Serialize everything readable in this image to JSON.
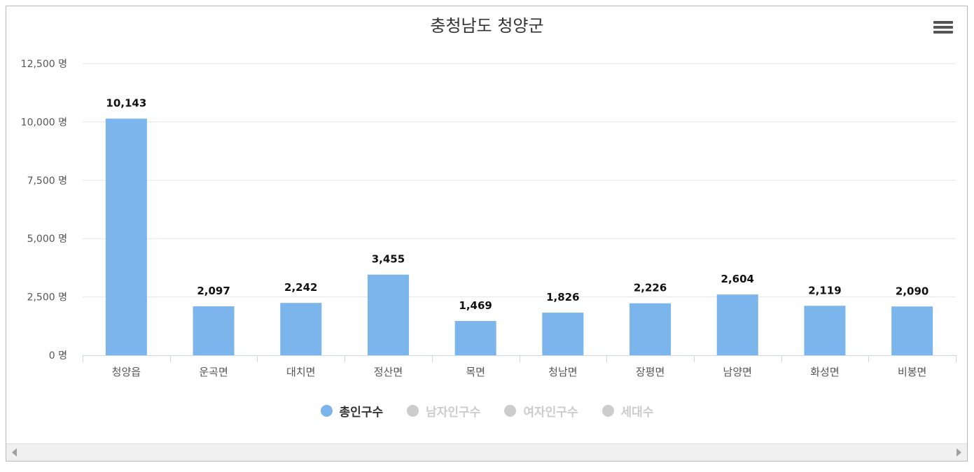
{
  "chart_data": {
    "type": "bar",
    "title": "충청남도 청양군",
    "categories": [
      "청양읍",
      "운곡면",
      "대치면",
      "정산면",
      "목면",
      "청남면",
      "장평면",
      "남양면",
      "화성면",
      "비봉면"
    ],
    "series": [
      {
        "name": "총인구수",
        "values": [
          10143,
          2097,
          2242,
          3455,
          1469,
          1826,
          2226,
          2604,
          2119,
          2090
        ],
        "visible": true
      }
    ],
    "data_labels": [
      "10,143",
      "2,097",
      "2,242",
      "3,455",
      "1,469",
      "1,826",
      "2,226",
      "2,604",
      "2,119",
      "2,090"
    ],
    "ylim": [
      0,
      12500
    ],
    "yticks": [
      0,
      2500,
      5000,
      7500,
      10000,
      12500
    ],
    "ytick_labels": [
      "0 명",
      "2,500 명",
      "5,000 명",
      "7,500 명",
      "10,000 명",
      "12,500 명"
    ],
    "grid": true,
    "legend_position": "bottom-center",
    "bar_color": "#7cb5ec"
  },
  "legend": [
    {
      "label": "총인구수",
      "color": "#7cb5ec",
      "text_color": "#333333"
    },
    {
      "label": "남자인구수",
      "color": "#cccccc",
      "text_color": "#cccccc"
    },
    {
      "label": "여자인구수",
      "color": "#cccccc",
      "text_color": "#cccccc"
    },
    {
      "label": "세대수",
      "color": "#cccccc",
      "text_color": "#cccccc"
    }
  ],
  "menu": {
    "icon": "hamburger-menu-icon"
  },
  "scrollbar": {
    "left_icon": "scroll-left-arrow-icon",
    "right_icon": "scroll-right-arrow-icon"
  }
}
